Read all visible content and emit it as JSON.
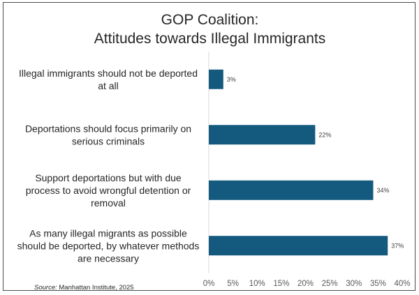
{
  "title_lines": [
    "GOP Coalition:",
    "Attitudes towards Illegal Immigrants"
  ],
  "source": {
    "label": "Source:",
    "text": "Manhattan Institute, 2025"
  },
  "colors": {
    "bar": "#145a7e",
    "axis": "#d9d9d9"
  },
  "chart_data": {
    "type": "bar",
    "orientation": "horizontal",
    "title": "GOP Coalition: Attitudes towards Illegal Immigrants",
    "categories": [
      [
        "Illegal immigrants should not be deported",
        "at all"
      ],
      [
        "Deportations should focus primarily on",
        "serious criminals"
      ],
      [
        "Support deportations but with due",
        "process to avoid wrongful detention or",
        "removal"
      ],
      [
        "As many illegal migrants as possible",
        "should be deported, by whatever methods",
        "are necessary"
      ]
    ],
    "values": [
      3,
      22,
      34,
      37
    ],
    "data_labels": [
      "3%",
      "22%",
      "34%",
      "37%"
    ],
    "xlim": [
      0,
      40
    ],
    "ticks": [
      0,
      5,
      10,
      15,
      20,
      25,
      30,
      35,
      40
    ],
    "tick_labels": [
      "0%",
      "5%",
      "10%",
      "15%",
      "20%",
      "25%",
      "30%",
      "35%",
      "40%"
    ],
    "grid": false,
    "legend": "none"
  }
}
